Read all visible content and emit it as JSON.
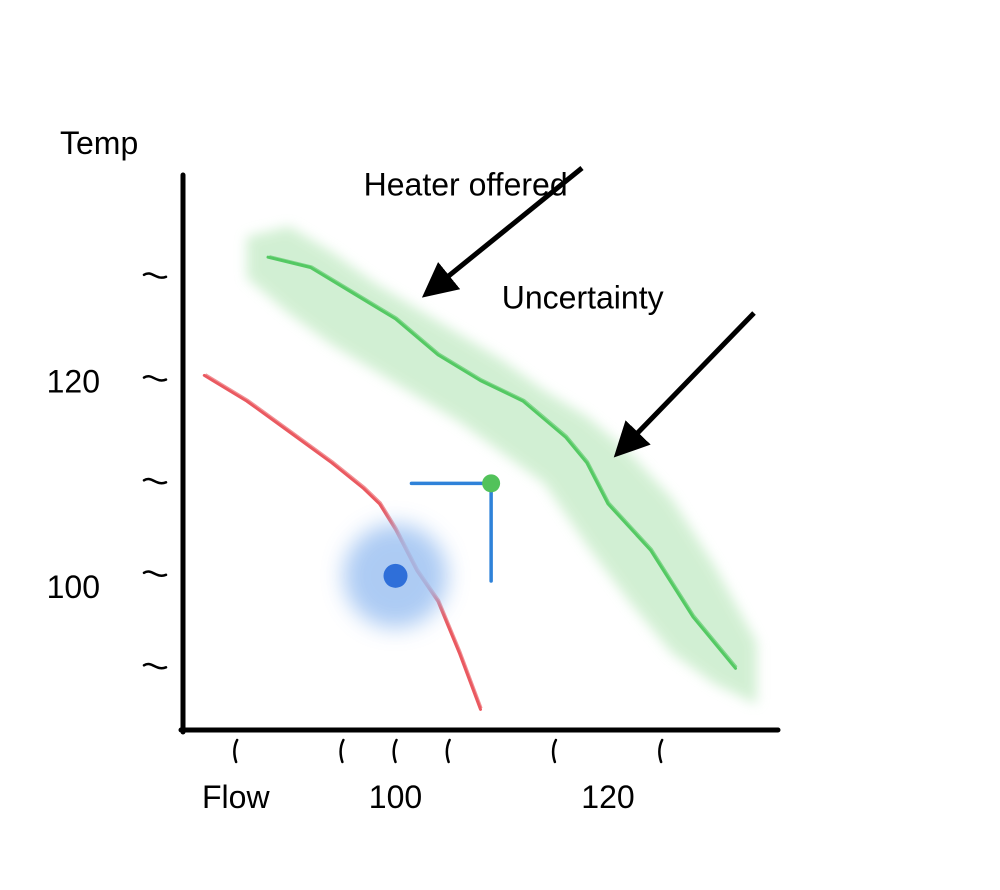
{
  "chart_data": {
    "type": "line",
    "title": "",
    "xlabel": "Flow",
    "ylabel": "Temp",
    "xlim": [
      80,
      136
    ],
    "ylim": [
      86,
      140
    ],
    "x_ticks": [
      85,
      95,
      100,
      105,
      115,
      125
    ],
    "x_tick_labels": [
      "100",
      "120"
    ],
    "x_tick_label_values": [
      100,
      120
    ],
    "y_ticks": [
      92,
      101,
      110,
      120,
      130
    ],
    "y_tick_labels": [
      "120",
      "100"
    ],
    "y_tick_label_values": [
      120,
      100
    ],
    "grid": false,
    "series": [
      {
        "name": "",
        "color": "#e8474f",
        "x": [
          82,
          86,
          90,
          94,
          97,
          98.5,
          100,
          102,
          104,
          106,
          108
        ],
        "y": [
          120.5,
          118,
          115,
          112,
          109.5,
          108,
          105.5,
          101.5,
          98.5,
          93.5,
          88
        ]
      },
      {
        "name": "Heater offered",
        "color": "#46c456",
        "x": [
          88,
          92,
          96,
          100,
          104,
          108,
          112,
          116,
          118,
          120,
          124,
          128,
          132
        ],
        "y": [
          132,
          131,
          128.5,
          126,
          122.5,
          120,
          118,
          114.5,
          112,
          108,
          103.5,
          97,
          92
        ]
      }
    ],
    "band": {
      "label": "Uncertainty",
      "color": "#cdeecf",
      "x": [
        86,
        90,
        94,
        98,
        102,
        106,
        110,
        114,
        118,
        122,
        126,
        130,
        134
      ],
      "upper": [
        134,
        135,
        132.5,
        129.5,
        127,
        124.5,
        122,
        119,
        116.5,
        113,
        108.5,
        102,
        94.5
      ],
      "lower": [
        130,
        126.5,
        123.5,
        121,
        118.5,
        116,
        113,
        110,
        104,
        98.5,
        93.5,
        90.5,
        88.5
      ]
    },
    "points": [
      {
        "name": "",
        "x": 100,
        "y": 101,
        "color": "#2f6fd9",
        "halo_color": "#9fc2f2"
      },
      {
        "name": "",
        "x": 109,
        "y": 110,
        "color": "#52c25a"
      }
    ],
    "guide": {
      "x_from": 101.5,
      "x_to": 109,
      "y_from": 100.5,
      "y_to": 110,
      "color": "#2f82d9"
    },
    "annotations": [
      {
        "text": "Heater offered",
        "x": 103,
        "y": 128.5,
        "text_x": 97,
        "text_y": 138
      },
      {
        "text": "Uncertainty",
        "x": 121,
        "y": 113,
        "text_x": 110,
        "text_y": 127
      }
    ]
  }
}
